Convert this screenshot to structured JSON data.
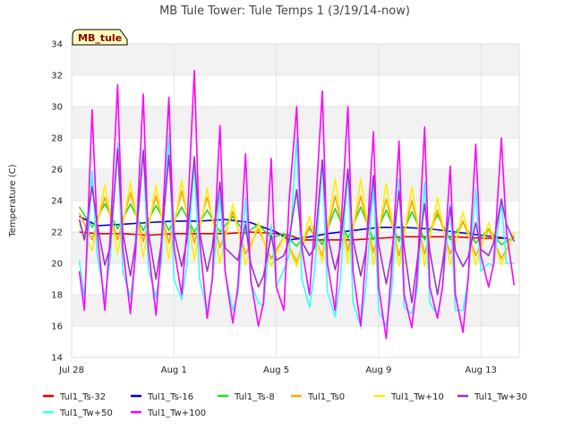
{
  "chart_data": {
    "type": "line",
    "title": "MB Tule Tower: Tule Temps 1 (3/19/14-now)",
    "xlabel": "",
    "ylabel": "Temperature (C)",
    "xlim": [
      0,
      17.5
    ],
    "ylim": [
      14,
      34
    ],
    "yticks": [
      14,
      16,
      18,
      20,
      22,
      24,
      26,
      28,
      30,
      32,
      34
    ],
    "xticks": [
      {
        "value": 0,
        "label": "Jul 28"
      },
      {
        "value": 4,
        "label": "Aug 1"
      },
      {
        "value": 8,
        "label": "Aug 5"
      },
      {
        "value": 12,
        "label": "Aug 9"
      },
      {
        "value": 16,
        "label": "Aug 13"
      }
    ],
    "x_unit_note": "days",
    "grid": true,
    "legend_position": "bottom",
    "badge": "MB_tule",
    "series_style": [
      {
        "name": "Tul1_Ts-32",
        "color": "#dd0000"
      },
      {
        "name": "Tul1_Ts-16",
        "color": "#0000cc"
      },
      {
        "name": "Tul1_Ts-8",
        "color": "#22dd22"
      },
      {
        "name": "Tul1_Ts0",
        "color": "#ffa500"
      },
      {
        "name": "Tul1_Tw+10",
        "color": "#ffee00"
      },
      {
        "name": "Tul1_Tw+30",
        "color": "#9933cc"
      },
      {
        "name": "Tul1_Tw+50",
        "color": "#33ffff"
      },
      {
        "name": "Tul1_Tw+100",
        "color": "#ff00ff"
      }
    ],
    "series": [
      {
        "name": "Tul1_Ts-32",
        "x": [
          0.3,
          1,
          2,
          3,
          4,
          5,
          6,
          7,
          8,
          8.5,
          9,
          10,
          11,
          12,
          13,
          14,
          15,
          16,
          17
        ],
        "values": [
          22.0,
          21.9,
          21.9,
          21.8,
          21.9,
          21.9,
          21.9,
          22.0,
          21.9,
          21.8,
          21.5,
          21.5,
          21.5,
          21.6,
          21.7,
          21.7,
          21.7,
          21.6,
          21.6
        ]
      },
      {
        "name": "Tul1_Ts-16",
        "x": [
          0.3,
          1,
          2,
          3,
          4,
          5,
          6,
          7,
          8,
          8.5,
          9,
          10,
          11,
          12,
          13,
          14,
          15,
          16,
          17
        ],
        "values": [
          23.0,
          22.4,
          22.5,
          22.6,
          22.7,
          22.7,
          22.8,
          22.6,
          22.0,
          21.5,
          21.6,
          21.9,
          22.1,
          22.3,
          22.3,
          22.2,
          22.0,
          21.8,
          21.6
        ]
      },
      {
        "name": "Tul1_Ts-8",
        "x": [
          0.3,
          0.8,
          1.3,
          1.8,
          2.3,
          2.8,
          3.3,
          3.8,
          4.3,
          4.8,
          5.3,
          5.8,
          6.3,
          6.8,
          7.3,
          7.8,
          8.3,
          8.8,
          9.3,
          9.8,
          10.3,
          10.8,
          11.3,
          11.8,
          12.3,
          12.8,
          13.3,
          13.8,
          14.3,
          14.8,
          15.3,
          15.8,
          16.3,
          16.8,
          17.3
        ],
        "values": [
          23.6,
          22.3,
          23.8,
          22.2,
          23.8,
          22.1,
          23.7,
          22.1,
          23.6,
          22.0,
          23.4,
          22.0,
          23.0,
          21.9,
          22.5,
          21.6,
          21.9,
          21.1,
          22.2,
          21.2,
          23.5,
          21.6,
          23.6,
          21.5,
          23.4,
          21.4,
          23.3,
          21.5,
          23.1,
          21.5,
          22.6,
          21.3,
          22.2,
          21.2,
          21.7
        ]
      },
      {
        "name": "Tul1_Ts0",
        "x": [
          0.3,
          0.8,
          1.3,
          1.8,
          2.3,
          2.8,
          3.3,
          3.8,
          4.3,
          4.8,
          5.3,
          5.8,
          6.3,
          6.8,
          7.3,
          7.8,
          8.3,
          8.8,
          9.3,
          9.8,
          10.3,
          10.8,
          11.3,
          11.8,
          12.3,
          12.8,
          13.3,
          13.8,
          14.3,
          14.8,
          15.3,
          15.8,
          16.3,
          16.8,
          17.3
        ],
        "values": [
          23.2,
          21.5,
          24.2,
          21.5,
          24.5,
          21.4,
          24.3,
          21.3,
          24.6,
          21.3,
          24.2,
          21.0,
          23.3,
          20.6,
          22.2,
          20.3,
          21.7,
          20.1,
          22.4,
          20.5,
          24.3,
          20.8,
          24.3,
          20.7,
          24.1,
          20.5,
          24.0,
          20.6,
          23.4,
          20.6,
          22.7,
          20.5,
          22.2,
          20.3,
          21.8
        ]
      },
      {
        "name": "Tul1_Tw+10",
        "x": [
          0.3,
          0.8,
          1.3,
          1.8,
          2.3,
          2.8,
          3.3,
          3.8,
          4.3,
          4.8,
          5.3,
          5.8,
          6.3,
          6.8,
          7.3,
          7.8,
          8.3,
          8.8,
          9.3,
          9.8,
          10.3,
          10.8,
          11.3,
          11.8,
          12.3,
          12.8,
          13.3,
          13.8,
          14.3,
          14.8,
          15.3,
          15.8,
          16.3,
          16.8,
          17.3
        ],
        "values": [
          22.5,
          20.8,
          25.0,
          20.6,
          25.2,
          20.4,
          25.0,
          20.3,
          25.3,
          20.2,
          24.8,
          20.0,
          23.8,
          19.9,
          22.6,
          19.8,
          21.7,
          19.8,
          23.0,
          20.1,
          25.4,
          20.0,
          25.4,
          19.9,
          25.1,
          19.8,
          24.9,
          19.8,
          24.2,
          19.9,
          23.3,
          19.9,
          22.6,
          19.9,
          22.0
        ]
      },
      {
        "name": "Tul1_Tw+30",
        "x": [
          0.3,
          0.5,
          0.8,
          1.0,
          1.3,
          1.5,
          1.8,
          2.0,
          2.3,
          2.5,
          2.8,
          3.0,
          3.3,
          3.5,
          3.8,
          4.0,
          4.3,
          4.5,
          4.8,
          5.0,
          5.3,
          5.5,
          5.8,
          6.0,
          6.3,
          6.5,
          6.8,
          7.0,
          7.3,
          7.5,
          7.8,
          8.0,
          8.3,
          8.5,
          8.8,
          9.0,
          9.3,
          9.5,
          9.8,
          10.0,
          10.3,
          10.5,
          10.8,
          11.0,
          11.3,
          11.5,
          11.8,
          12.0,
          12.3,
          12.5,
          12.8,
          13.0,
          13.3,
          13.5,
          13.8,
          14.0,
          14.3,
          14.5,
          14.8,
          15.0,
          15.3,
          15.5,
          15.8,
          16.0,
          16.3,
          16.5,
          16.8,
          17.0,
          17.3
        ],
        "values": [
          22.8,
          21.5,
          24.9,
          22.5,
          19.9,
          21.0,
          27.3,
          22.0,
          19.2,
          21.3,
          27.2,
          22.0,
          19.0,
          21.2,
          26.9,
          22.0,
          19.8,
          21.4,
          26.8,
          22.0,
          19.5,
          21.0,
          25.2,
          21.0,
          20.5,
          20.2,
          22.5,
          20.0,
          18.5,
          19.2,
          21.8,
          20.2,
          20.5,
          21.5,
          24.7,
          21.4,
          20.5,
          21.0,
          26.6,
          21.8,
          19.6,
          21.0,
          26.0,
          21.5,
          19.2,
          20.8,
          25.6,
          21.2,
          18.7,
          20.5,
          24.6,
          21.0,
          17.5,
          20.0,
          23.8,
          20.8,
          18.0,
          20.0,
          23.6,
          20.8,
          19.8,
          20.4,
          22.6,
          20.9,
          20.5,
          21.3,
          24.1,
          22.5,
          21.4
        ]
      },
      {
        "name": "Tul1_Tw+50",
        "x": [
          0.3,
          0.5,
          0.8,
          1.0,
          1.3,
          1.5,
          1.8,
          2.0,
          2.3,
          2.5,
          2.8,
          3.0,
          3.3,
          3.5,
          3.8,
          4.0,
          4.3,
          4.5,
          4.8,
          5.0,
          5.3,
          5.5,
          5.8,
          6.0,
          6.3,
          6.5,
          6.8,
          7.0,
          7.3,
          7.5,
          7.8,
          8.0,
          8.3,
          8.5,
          8.8,
          9.0,
          9.3,
          9.5,
          9.8,
          10.0,
          10.3,
          10.5,
          10.8,
          11.0,
          11.3,
          11.5,
          11.8,
          12.0,
          12.3,
          12.5,
          12.8,
          13.0,
          13.3,
          13.5,
          13.8,
          14.0,
          14.3,
          14.5,
          14.8,
          15.0,
          15.3,
          15.5,
          15.8,
          16.0,
          16.3,
          16.5,
          16.8,
          17.0,
          17.3
        ],
        "values": [
          20.2,
          17.8,
          25.9,
          20.5,
          17.8,
          20.2,
          27.7,
          19.5,
          17.8,
          20.4,
          27.3,
          19.7,
          17.8,
          20.0,
          28.2,
          19.0,
          17.7,
          19.8,
          26.5,
          19.0,
          17.0,
          18.8,
          24.4,
          19.5,
          17.0,
          18.0,
          24.2,
          18.8,
          17.5,
          17.3,
          22.5,
          18.5,
          19.6,
          20.5,
          28.0,
          19.0,
          17.2,
          19.5,
          26.6,
          18.2,
          16.6,
          18.8,
          26.1,
          17.5,
          16.0,
          18.5,
          25.0,
          17.0,
          16.0,
          18.0,
          25.4,
          17.2,
          16.8,
          18.2,
          25.2,
          17.5,
          16.7,
          18.5,
          23.8,
          17.0,
          17.0,
          19.0,
          24.8,
          19.5,
          20.0,
          19.8,
          24.0,
          20.0,
          20.0
        ]
      },
      {
        "name": "Tul1_Tw+100",
        "x": [
          0.3,
          0.5,
          0.8,
          1.0,
          1.3,
          1.5,
          1.8,
          2.0,
          2.3,
          2.5,
          2.8,
          3.0,
          3.3,
          3.5,
          3.8,
          4.0,
          4.3,
          4.5,
          4.8,
          5.0,
          5.3,
          5.5,
          5.8,
          6.0,
          6.3,
          6.5,
          6.8,
          7.0,
          7.3,
          7.5,
          7.8,
          8.0,
          8.3,
          8.5,
          8.8,
          9.0,
          9.3,
          9.5,
          9.8,
          10.0,
          10.3,
          10.5,
          10.8,
          11.0,
          11.3,
          11.5,
          11.8,
          12.0,
          12.3,
          12.5,
          12.8,
          13.0,
          13.3,
          13.5,
          13.8,
          14.0,
          14.3,
          14.5,
          14.8,
          15.0,
          15.3,
          15.5,
          15.8,
          16.0,
          16.3,
          16.5,
          16.8,
          17.0,
          17.3
        ],
        "values": [
          19.5,
          17.0,
          29.8,
          22.0,
          17.0,
          21.5,
          31.4,
          21.0,
          16.8,
          20.8,
          30.8,
          21.0,
          16.7,
          21.0,
          30.6,
          21.0,
          18.0,
          22.0,
          32.3,
          21.5,
          16.5,
          19.0,
          28.8,
          19.5,
          16.2,
          18.5,
          27.0,
          19.0,
          16.0,
          17.5,
          26.7,
          18.5,
          17.0,
          24.0,
          30.0,
          21.0,
          18.0,
          22.5,
          31.0,
          20.0,
          17.0,
          21.5,
          30.0,
          19.5,
          16.0,
          20.5,
          28.4,
          18.5,
          15.2,
          19.5,
          27.8,
          18.0,
          15.9,
          19.0,
          28.7,
          18.5,
          16.5,
          18.5,
          26.2,
          18.0,
          15.6,
          19.0,
          27.6,
          20.5,
          18.5,
          20.0,
          28.0,
          22.0,
          18.6
        ]
      }
    ]
  }
}
